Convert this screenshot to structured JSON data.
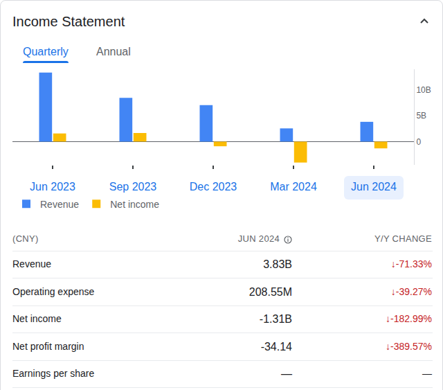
{
  "header": {
    "title": "Income Statement"
  },
  "tabs": [
    "Quarterly",
    "Annual"
  ],
  "chart_data": {
    "type": "bar",
    "categories": [
      "Jun 2023",
      "Sep 2023",
      "Dec 2023",
      "Mar 2024",
      "Jun 2024"
    ],
    "series": [
      {
        "name": "Revenue",
        "color": "#4285f4",
        "values": [
          13.36,
          8.46,
          7.05,
          2.56,
          3.83
        ]
      },
      {
        "name": "Net income",
        "color": "#fbbc04",
        "values": [
          1.58,
          1.67,
          -0.9,
          -4.05,
          -1.31
        ]
      }
    ],
    "ylim": [
      -4.5,
      14
    ],
    "yticks": [
      0,
      {
        "value": 5,
        "label": "5B"
      },
      {
        "value": 10,
        "label": "10B"
      }
    ],
    "grid": false,
    "legend": "bottom"
  },
  "table": {
    "header": [
      "(CNY)",
      "JUN 2024",
      "Y/Y CHANGE"
    ],
    "rows": [
      [
        "Revenue",
        "3.83B",
        "↓-71.33%"
      ],
      [
        "Operating expense",
        "208.55M",
        "↓-39.27%"
      ],
      [
        "Net income",
        "-1.31B",
        "↓-182.99%"
      ],
      [
        "Net profit margin",
        "-34.14",
        "↓-389.57%"
      ],
      [
        "Earnings per share",
        "—",
        "—"
      ]
    ]
  }
}
